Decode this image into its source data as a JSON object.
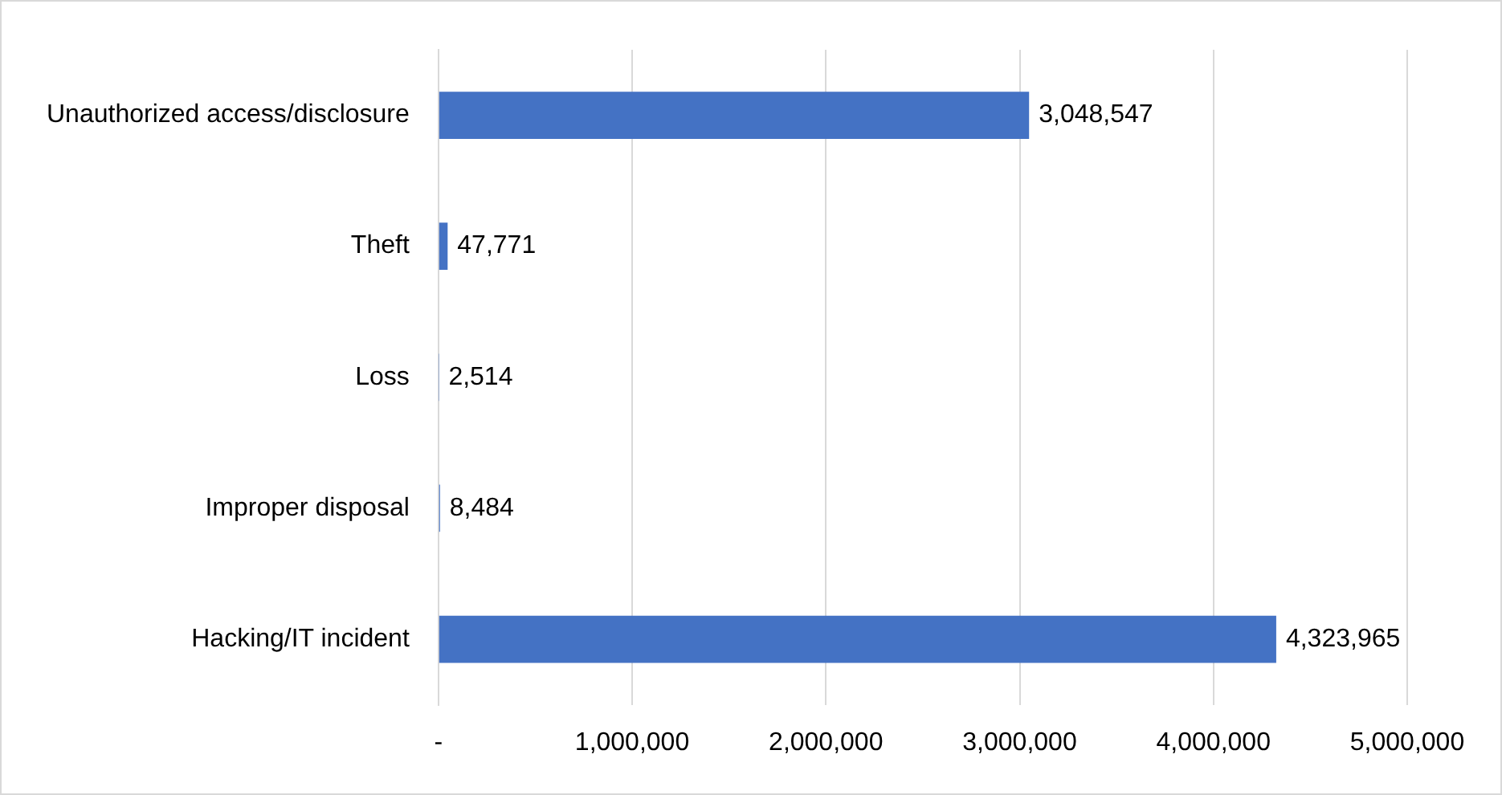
{
  "chart_data": {
    "type": "bar",
    "orientation": "horizontal",
    "categories": [
      "Unauthorized access/disclosure",
      "Theft",
      "Loss",
      "Improper disposal",
      "Hacking/IT incident"
    ],
    "values": [
      3048547,
      47771,
      2514,
      8484,
      4323965
    ],
    "value_labels": [
      "3,048,547",
      "47,771",
      "2,514",
      "8,484",
      "4,323,965"
    ],
    "color": "#4472c4",
    "xlim": [
      0,
      5000000
    ],
    "xticks": [
      {
        "value": 0,
        "label": "-"
      },
      {
        "value": 1000000,
        "label": "1,000,000"
      },
      {
        "value": 2000000,
        "label": "2,000,000"
      },
      {
        "value": 3000000,
        "label": "3,000,000"
      },
      {
        "value": 4000000,
        "label": "4,000,000"
      },
      {
        "value": 5000000,
        "label": "5,000,000"
      }
    ],
    "grid": "x"
  }
}
